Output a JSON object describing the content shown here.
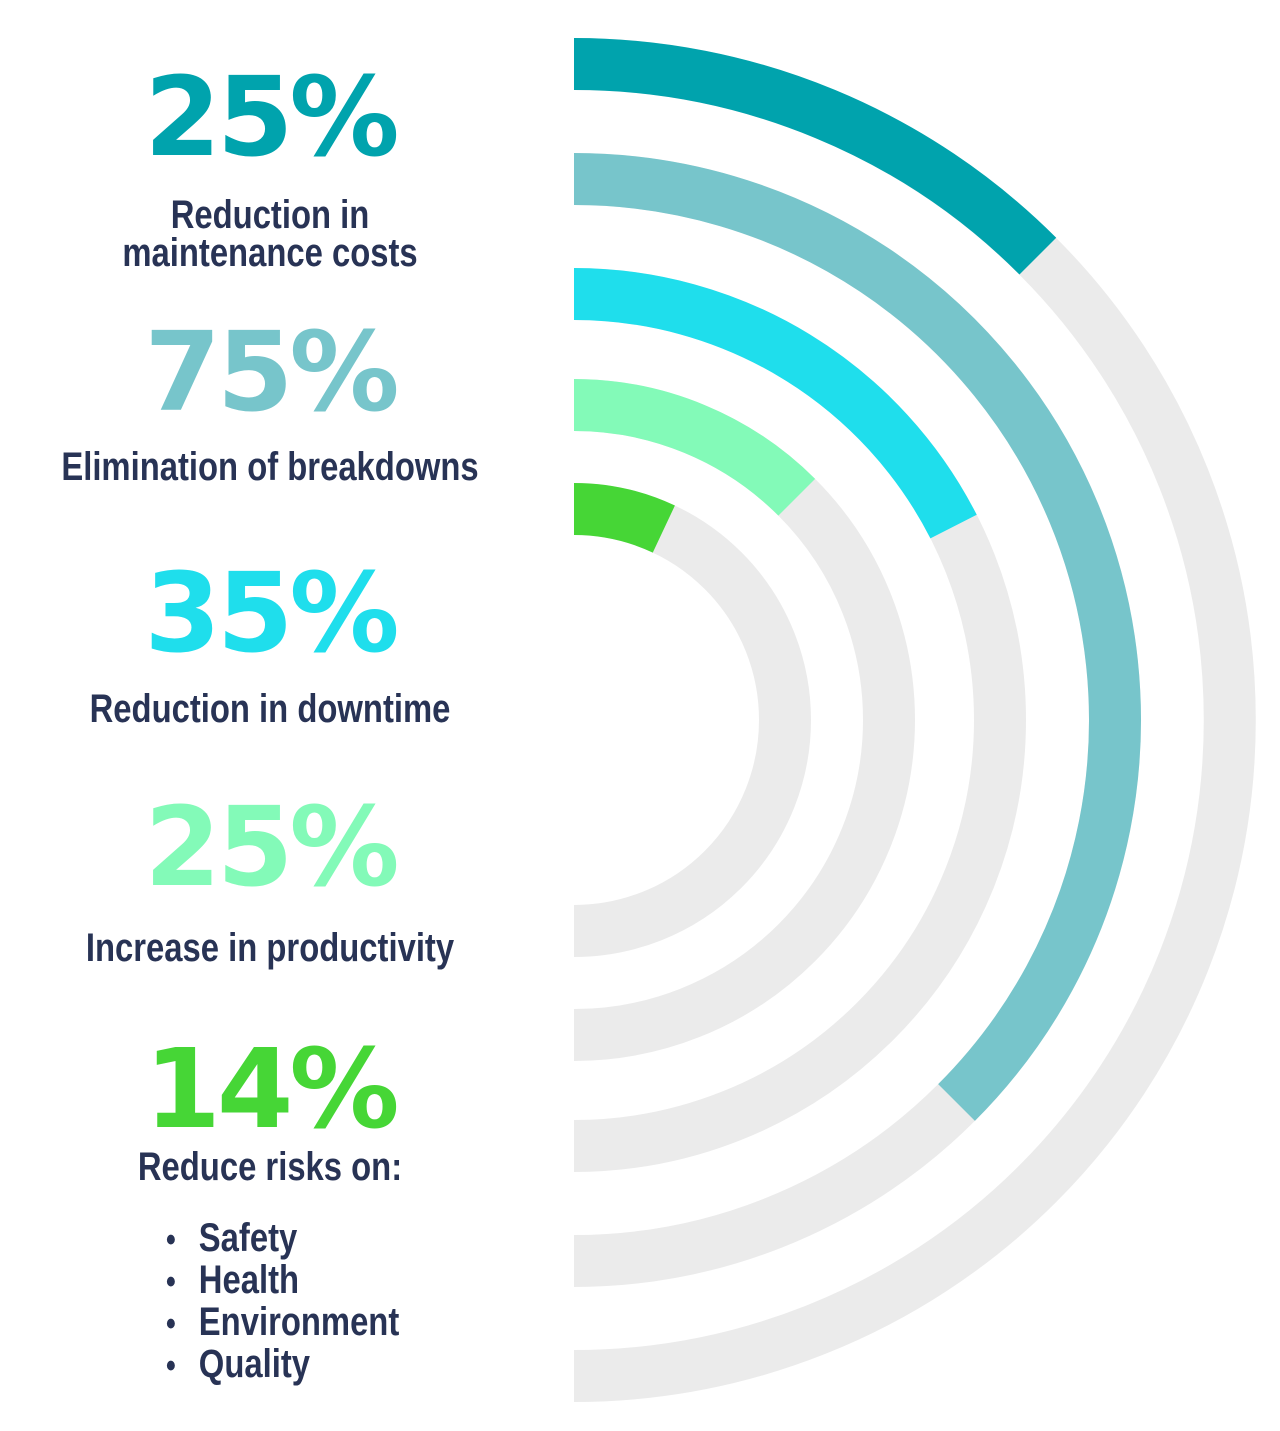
{
  "chart_data": {
    "type": "radial-bar",
    "max_value": 100,
    "series": [
      {
        "name": "Reduction in maintenance costs",
        "value": 25,
        "display": "25%",
        "color": "#00a3ad",
        "label_lines": [
          "Reduction in",
          "maintenance costs"
        ]
      },
      {
        "name": "Elimination of breakdowns",
        "value": 75,
        "display": "75%",
        "color": "#77c5cb",
        "label_lines": [
          "Elimination of breakdowns"
        ]
      },
      {
        "name": "Reduction in downtime",
        "value": 35,
        "display": "35%",
        "color": "#1fdeec",
        "label_lines": [
          "Reduction in downtime"
        ]
      },
      {
        "name": "Increase in productivity",
        "value": 25,
        "display": "25%",
        "color": "#83fab8",
        "label_lines": [
          "Increase in productivity"
        ]
      },
      {
        "name": "Reduce risks on:",
        "value": 14,
        "display": "14%",
        "color": "#46d636",
        "label_lines": [
          "Reduce risks on:"
        ]
      }
    ],
    "risk_items": [
      "Safety",
      "Health",
      "Environment",
      "Quality"
    ],
    "track_color": "#ebebeb"
  },
  "colors": {
    "label_text": "#283355",
    "background": "#ffffff"
  }
}
